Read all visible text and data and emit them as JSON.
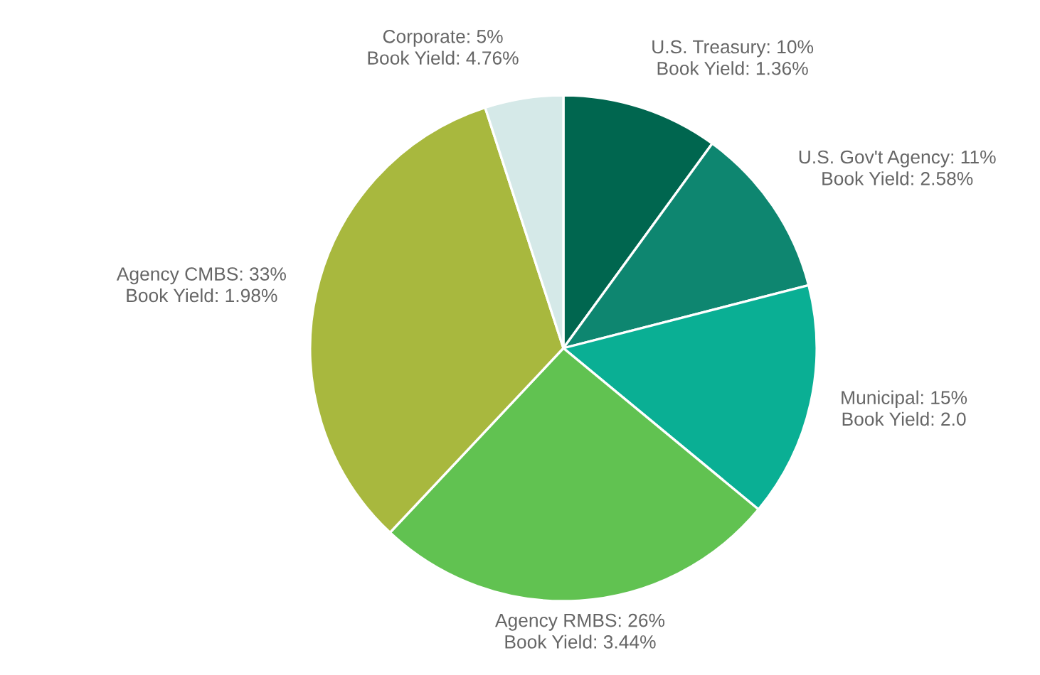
{
  "chart_data": {
    "type": "pie",
    "categories": [
      "U.S. Treasury",
      "U.S. Gov't Agency",
      "Municipal",
      "Agency RMBS",
      "Agency CMBS",
      "Corporate"
    ],
    "values": [
      10,
      11,
      15,
      26,
      33,
      5
    ],
    "colors": [
      "#00664f",
      "#0e8670",
      "#0aaf94",
      "#61c251",
      "#a8b83e",
      "#d5e9e8"
    ],
    "value_labels": [
      "10%",
      "11%",
      "15%",
      "26%",
      "33%",
      "5%"
    ],
    "annotations": [
      "Book Yield: 1.36%",
      "Book Yield: 2.58%",
      "Book Yield: 2.0",
      "Book Yield: 3.44%",
      "Book Yield: 1.98%",
      "Book Yield: 4.76%"
    ]
  }
}
